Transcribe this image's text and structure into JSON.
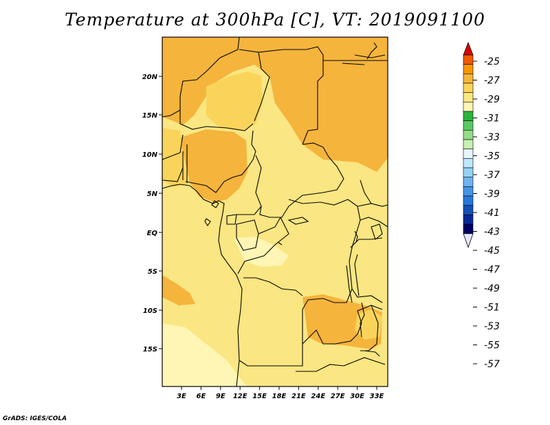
{
  "title": "Temperature at 300hPa [C], VT: 2019091100",
  "credit": "GrADS: IGES/COLA",
  "map": {
    "lat_labels": [
      "20N",
      "15N",
      "10N",
      "5N",
      "EQ",
      "5S",
      "10S",
      "15S"
    ],
    "lon_labels": [
      "3E",
      "6E",
      "9E",
      "12E",
      "15E",
      "18E",
      "21E",
      "24E",
      "27E",
      "30E",
      "33E"
    ],
    "colors": {
      "band_27_29": "#f5b43c",
      "band_29_31": "#fad45a",
      "band_31_33": "#fae682",
      "band_33_35": "#fff5b4",
      "border": "#000000"
    }
  },
  "colorbar": {
    "labels": [
      "-25",
      "-27",
      "-29",
      "-31",
      "-33",
      "-35",
      "-37",
      "-39",
      "-41",
      "-43",
      "-45",
      "-47",
      "-49",
      "-51",
      "-53",
      "-55",
      "-57"
    ],
    "colors": [
      "#dc0000",
      "#f05a00",
      "#fa9600",
      "#f5b43c",
      "#fad45a",
      "#fae682",
      "#fff5b4",
      "#2db43c",
      "#5ac864",
      "#96dc8c",
      "#c8f0b4",
      "#e6f5fa",
      "#bee6fa",
      "#96d2f5",
      "#6eb4f0",
      "#4696e6",
      "#2878dc",
      "#1450b4",
      "#0a2896",
      "#000064",
      "#e6e6fa"
    ]
  }
}
